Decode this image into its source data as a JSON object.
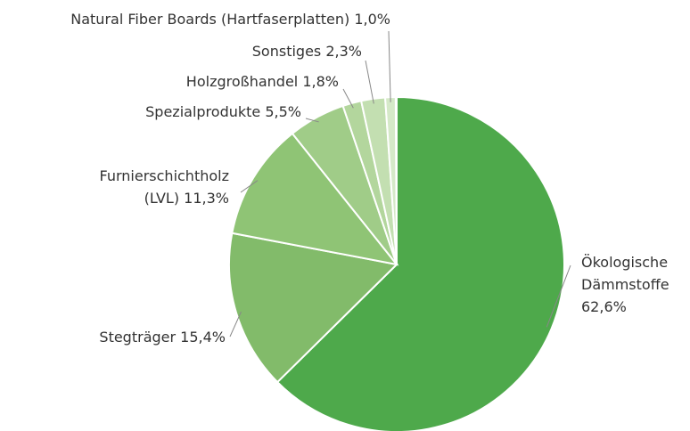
{
  "chart_data": {
    "type": "pie",
    "categories": [
      "Ökologische Dämmstoffe",
      "Stegträger",
      "Furnierschichtholz (LVL)",
      "Spezialprodukte",
      "Holzgroßhandel",
      "Sonstiges",
      "Natural Fiber Boards (Hartfaserplatten)"
    ],
    "values": [
      62.6,
      15.4,
      11.3,
      5.5,
      1.8,
      2.3,
      1.0
    ],
    "value_labels": [
      "62,6%",
      "15,4%",
      "11,3%",
      "5,5%",
      "1,8%",
      "2,3%",
      "1,0%"
    ],
    "colors": [
      "#4ea94b",
      "#82bb6a",
      "#8fc475",
      "#a0cc88",
      "#b3d69d",
      "#c3dfb1",
      "#d5e9c8"
    ]
  }
}
